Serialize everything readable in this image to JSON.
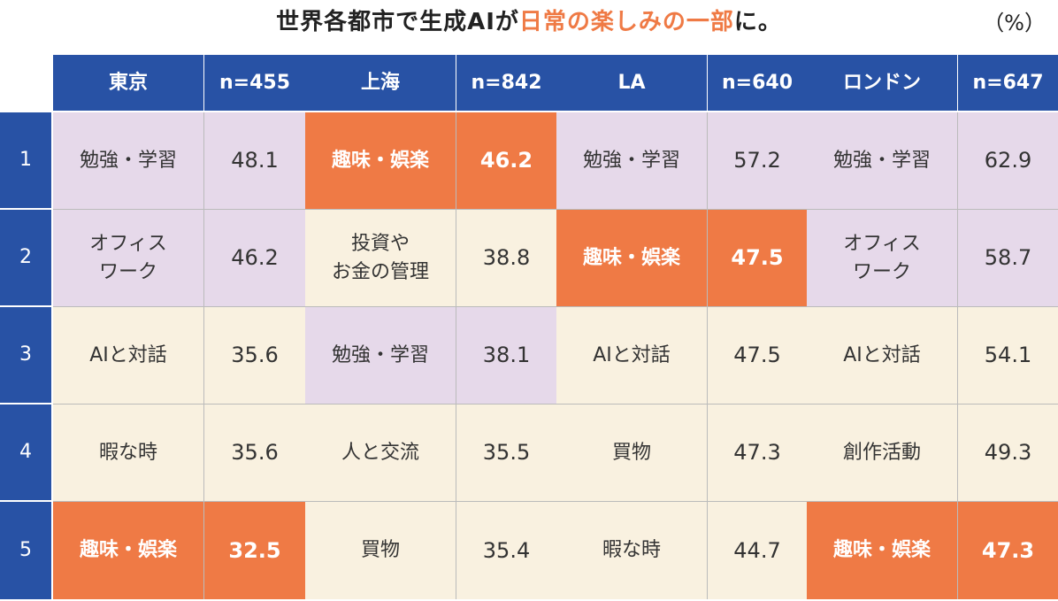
{
  "title": {
    "parts": [
      "世界各都市で生成AIが",
      "日常の楽しみの一部",
      "に。"
    ]
  },
  "unit": "（%）",
  "highlight_color": "#ef7a45",
  "header": {
    "cities": [
      {
        "name": "東京",
        "n": "n=455"
      },
      {
        "name": "上海",
        "n": "n=842"
      },
      {
        "name": "LA",
        "n": "n=640"
      },
      {
        "name": "ロンドン",
        "n": "n=647"
      }
    ]
  },
  "rows": [
    {
      "rank": "1",
      "cells": [
        {
          "label": "勉強・学習",
          "value": 48.1,
          "color": "#e6d9ea"
        },
        {
          "label": "趣味・娯楽",
          "value": 46.2,
          "color": "#ef7a45"
        },
        {
          "label": "勉強・学習",
          "value": 57.2,
          "color": "#e6d9ea"
        },
        {
          "label": "勉強・学習",
          "value": 62.9,
          "color": "#e6d9ea"
        }
      ]
    },
    {
      "rank": "2",
      "cells": [
        {
          "label": "オフィス\nワーク",
          "value": 46.2,
          "color": "#e6d9ea"
        },
        {
          "label": "投資や\nお金の管理",
          "value": 38.8,
          "color": "#f9f1e0"
        },
        {
          "label": "趣味・娯楽",
          "value": 47.5,
          "color": "#ef7a45"
        },
        {
          "label": "オフィス\nワーク",
          "value": 58.7,
          "color": "#e6d9ea"
        }
      ]
    },
    {
      "rank": "3",
      "cells": [
        {
          "label": "AIと対話",
          "value": 35.6,
          "color": "#f9f1e0"
        },
        {
          "label": "勉強・学習",
          "value": 38.1,
          "color": "#e6d9ea"
        },
        {
          "label": "AIと対話",
          "value": 47.5,
          "color": "#f9f1e0"
        },
        {
          "label": "AIと対話",
          "value": 54.1,
          "color": "#f9f1e0"
        }
      ]
    },
    {
      "rank": "4",
      "cells": [
        {
          "label": "暇な時",
          "value": 35.6,
          "color": "#f9f1e0"
        },
        {
          "label": "人と交流",
          "value": 35.5,
          "color": "#f9f1e0"
        },
        {
          "label": "買物",
          "value": 47.3,
          "color": "#f9f1e0"
        },
        {
          "label": "創作活動",
          "value": 49.3,
          "color": "#f9f1e0"
        }
      ]
    },
    {
      "rank": "5",
      "cells": [
        {
          "label": "趣味・娯楽",
          "value": 32.5,
          "color": "#ef7a45"
        },
        {
          "label": "買物",
          "value": 35.4,
          "color": "#f9f1e0"
        },
        {
          "label": "暇な時",
          "value": 44.7,
          "color": "#f9f1e0"
        },
        {
          "label": "趣味・娯楽",
          "value": 47.3,
          "color": "#ef7a45"
        }
      ]
    }
  ]
}
